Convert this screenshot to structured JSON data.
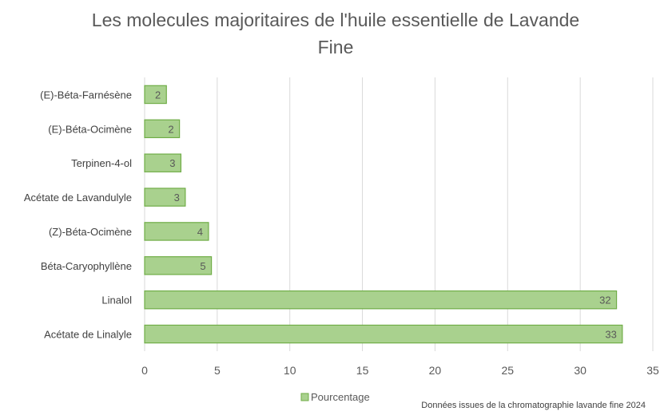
{
  "chart_data": {
    "type": "bar",
    "orientation": "horizontal",
    "title": "Les molecules majoritaires de l'huile essentielle de Lavande Fine",
    "categories": [
      "(E)-Béta-Farnésène",
      "(E)-Béta-Ocimène",
      "Terpinen-4-ol",
      "Acétate de Lavandulyle",
      "(Z)-Béta-Ocimène",
      "Béta-Caryophyllène",
      "Linalol",
      "Acétate de Linalyle"
    ],
    "series": [
      {
        "name": "Pourcentage",
        "values": [
          1.5,
          2.4,
          2.5,
          2.8,
          4.4,
          4.6,
          32.5,
          32.9
        ],
        "data_labels": [
          "2",
          "2",
          "3",
          "3",
          "4",
          "5",
          "32",
          "33"
        ],
        "color": "#a9d18e",
        "border_color": "#70ad47"
      }
    ],
    "xlim": [
      0,
      35
    ],
    "x_ticks": [
      0,
      5,
      10,
      15,
      20,
      25,
      30,
      35
    ],
    "grid": true,
    "legend_position": "bottom",
    "source_note": "Données issues de la chromatographie lavande fine 2024"
  }
}
